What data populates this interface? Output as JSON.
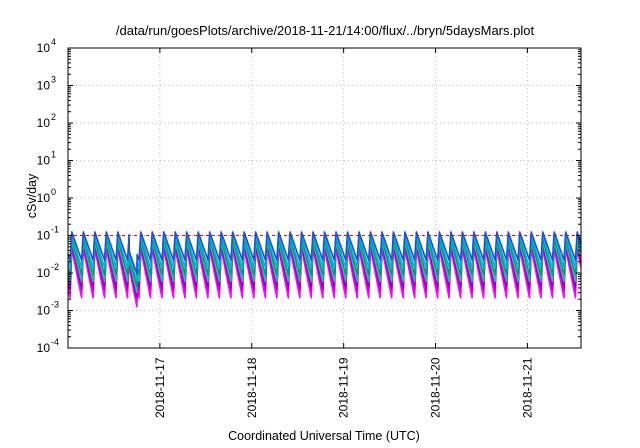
{
  "chart_data": {
    "type": "line",
    "title": "/data/run/goesPlots/archive/2018-11-21/14:00/flux/../bryn/5daysMars.plot",
    "xlabel": "Coordinated Universal Time (UTC)",
    "ylabel": "cSv/day",
    "yscale": "log",
    "ylim": [
      0.0001,
      10000
    ],
    "y_ticks": [
      {
        "base": "10",
        "exp": "4"
      },
      {
        "base": "10",
        "exp": "3"
      },
      {
        "base": "10",
        "exp": "2"
      },
      {
        "base": "10",
        "exp": "1"
      },
      {
        "base": "10",
        "exp": "0"
      },
      {
        "base": "10",
        "exp": "-1"
      },
      {
        "base": "10",
        "exp": "-2"
      },
      {
        "base": "10",
        "exp": "-3"
      },
      {
        "base": "10",
        "exp": "-4"
      }
    ],
    "x_range": [
      "2018-11-16T00:00",
      "2018-11-21T14:00"
    ],
    "x_ticks": [
      "2018-11-17",
      "2018-11-18",
      "2018-11-19",
      "2018-11-20",
      "2018-11-21"
    ],
    "grid": true,
    "legend": "none",
    "reference_line": {
      "y": 0.1,
      "color": "#ff0000",
      "style": "dashed"
    },
    "cycle": {
      "period_hours": 3,
      "first_peak": "2018-11-16T01:00"
    },
    "anomaly": {
      "start": "2018-11-16T16:00",
      "end": "2018-11-16T18:00",
      "factor": 0.3
    },
    "series": [
      {
        "color": "#ff00ff",
        "peak": 0.045,
        "trough": 0.0022
      },
      {
        "color": "#c000c0",
        "peak": 0.055,
        "trough": 0.0035
      },
      {
        "color": "#9400d3",
        "peak": 0.062,
        "trough": 0.0042
      },
      {
        "color": "#20c0a0",
        "peak": 0.07,
        "trough": 0.006
      },
      {
        "color": "#009e73",
        "peak": 0.085,
        "trough": 0.009
      },
      {
        "color": "#00b0e0",
        "peak": 0.1,
        "trough": 0.014
      },
      {
        "color": "#1e50d0",
        "peak": 0.125,
        "trough": 0.022
      }
    ]
  }
}
